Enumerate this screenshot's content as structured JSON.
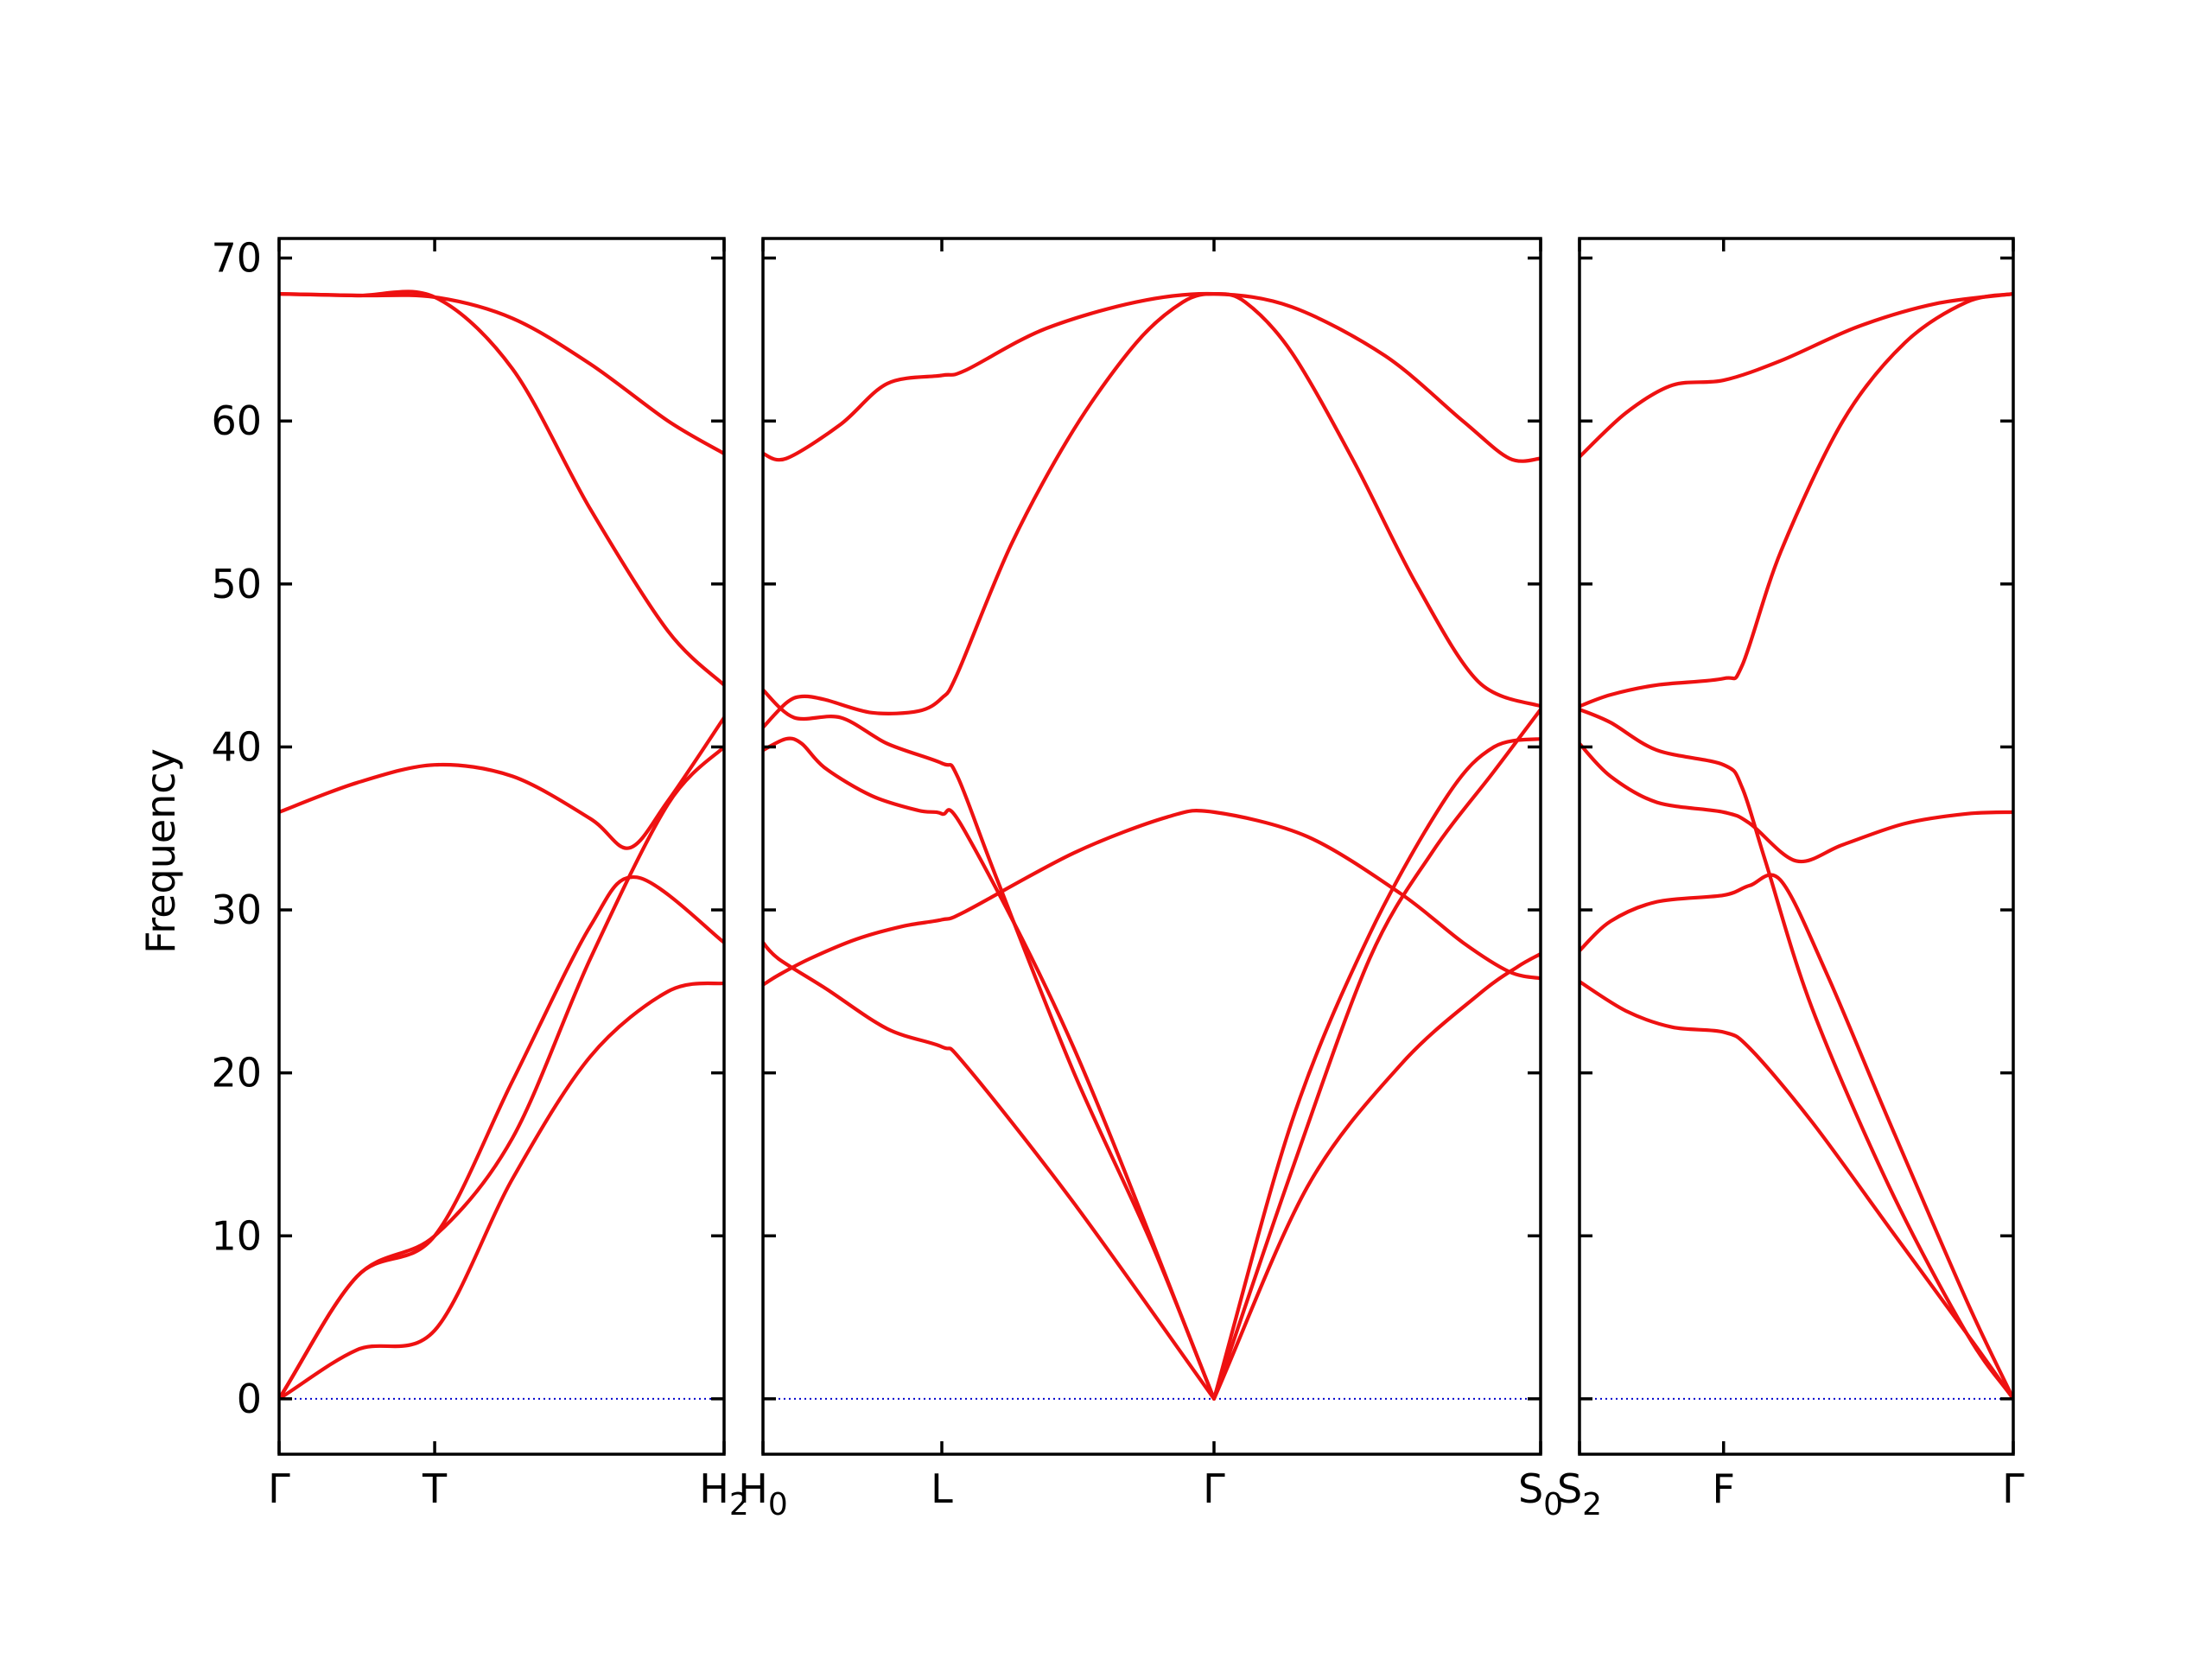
{
  "chart_data": {
    "type": "line",
    "ylabel": "Frequency",
    "xlabel": "",
    "ylim": [
      -3.4,
      71.2
    ],
    "yticks": [
      0,
      10,
      20,
      30,
      40,
      50,
      60,
      70
    ],
    "grid": false,
    "legend": "none",
    "colors": {
      "bands": "#ee1111",
      "zero_line": "#0000cc",
      "axes": "#000000"
    },
    "panels": [
      {
        "xlim": [
          0,
          2.86
        ],
        "xticks": [
          {
            "x": 0,
            "label": "Γ"
          },
          {
            "x": 1.0,
            "label": "T"
          },
          {
            "x": 2.86,
            "label": "H",
            "sub": "2"
          }
        ],
        "bands": [
          {
            "x": [
              0,
              0.5,
              1.0,
              1.5,
              2.0,
              2.5,
              2.86
            ],
            "y": [
              0,
              3.0,
              4.2,
              13.5,
              21.0,
              25.0,
              25.5
            ]
          },
          {
            "x": [
              0,
              0.5,
              1.0,
              1.5,
              2.0,
              2.3,
              2.86
            ],
            "y": [
              0,
              7.5,
              10.0,
              19.5,
              29.0,
              32.0,
              28.0
            ]
          },
          {
            "x": [
              0,
              0.5,
              1.0,
              1.5,
              2.0,
              2.5,
              2.86
            ],
            "y": [
              0,
              7.5,
              10.0,
              16.0,
              27.0,
              36.5,
              40.0
            ]
          },
          {
            "x": [
              0,
              0.5,
              1.0,
              1.5,
              2.0,
              2.25,
              2.5,
              2.86
            ],
            "y": [
              36.0,
              37.8,
              38.9,
              38.2,
              35.6,
              33.8,
              36.7,
              41.8
            ]
          },
          {
            "x": [
              0,
              0.5,
              1.0,
              1.5,
              2.0,
              2.5,
              2.86
            ],
            "y": [
              67.8,
              67.7,
              67.6,
              63.2,
              54.6,
              47.1,
              43.8
            ]
          },
          {
            "x": [
              0,
              0.5,
              1.0,
              1.5,
              2.0,
              2.5,
              2.86
            ],
            "y": [
              67.8,
              67.7,
              67.6,
              66.3,
              63.5,
              60.0,
              58.0
            ]
          }
        ]
      },
      {
        "xlim": [
          0,
          5.0
        ],
        "xticks": [
          {
            "x": 0,
            "label": "H",
            "sub": "0"
          },
          {
            "x": 1.15,
            "label": "L"
          },
          {
            "x": 2.9,
            "label": "Γ"
          },
          {
            "x": 5.0,
            "label": "S",
            "sub": "0"
          }
        ],
        "bands": [
          {
            "x": [
              0,
              0.1,
              0.3,
              0.6,
              0.9,
              1.15,
              1.3,
              2.0,
              2.6,
              2.9,
              3.5,
              4.1,
              4.5,
              4.8,
              5.0
            ],
            "y": [
              25.4,
              26.0,
              27.0,
              28.2,
              29.0,
              29.4,
              29.9,
              33.5,
              35.7,
              36.0,
              34.5,
              31.0,
              28.0,
              26.2,
              25.8
            ]
          },
          {
            "x": [
              0,
              0.1,
              0.4,
              0.8,
              1.15,
              1.3,
              2.0,
              2.9,
              3.5,
              4.1,
              4.6,
              4.85,
              5.0
            ],
            "y": [
              28.0,
              27.0,
              25.2,
              22.7,
              21.6,
              20.5,
              12.0,
              0,
              13.0,
              20.5,
              24.8,
              26.5,
              27.3
            ]
          },
          {
            "x": [
              0,
              0.15,
              0.25,
              0.4,
              0.7,
              1.0,
              1.15,
              1.3,
              2.0,
              2.9,
              3.4,
              3.9,
              4.4,
              4.7,
              5.0
            ],
            "y": [
              39.8,
              40.5,
              40.2,
              38.7,
              37.0,
              36.1,
              35.9,
              34.8,
              21.5,
              0,
              17.0,
              28.5,
              37.0,
              40.0,
              40.5
            ]
          },
          {
            "x": [
              0,
              0.2,
              0.5,
              0.8,
              1.15,
              1.25,
              1.5,
              2.0,
              2.5,
              2.9,
              3.4,
              3.9,
              4.3,
              4.7,
              5.0
            ],
            "y": [
              43.5,
              41.8,
              41.8,
              40.2,
              39.0,
              38.2,
              32.0,
              20.0,
              9.5,
              0,
              14.0,
              27.0,
              33.5,
              38.5,
              42.3
            ]
          },
          {
            "x": [
              0,
              0.15,
              0.25,
              0.4,
              0.7,
              1.0,
              1.15,
              1.25,
              1.6,
              2.0,
              2.4,
              2.7,
              2.9,
              3.1,
              3.4,
              3.8,
              4.2,
              4.6,
              5.0
            ],
            "y": [
              41.2,
              42.7,
              43.1,
              42.9,
              42.1,
              42.2,
              43.0,
              44.5,
              52.5,
              59.5,
              64.8,
              67.3,
              67.8,
              67.3,
              64.2,
              57.5,
              50.0,
              44.0,
              42.5
            ]
          },
          {
            "x": [
              0,
              0.15,
              0.5,
              0.8,
              1.15,
              1.3,
              1.8,
              2.4,
              2.9,
              3.4,
              4.0,
              4.5,
              4.8,
              5.0
            ],
            "y": [
              58.0,
              57.7,
              59.8,
              62.3,
              62.8,
              63.1,
              65.6,
              67.3,
              67.8,
              67.0,
              64.0,
              60.0,
              57.7,
              57.7
            ]
          }
        ]
      },
      {
        "xlim": [
          0,
          2.8
        ],
        "xticks": [
          {
            "x": 0,
            "label": "S",
            "sub": "2"
          },
          {
            "x": 0.93,
            "label": "F"
          },
          {
            "x": 2.8,
            "label": "Γ"
          }
        ],
        "bands": [
          {
            "x": [
              0,
              0.3,
              0.6,
              0.93,
              1.1,
              1.5,
              2.0,
              2.5,
              2.8
            ],
            "y": [
              25.6,
              23.8,
              22.8,
              22.5,
              21.5,
              17.0,
              10.5,
              4.0,
              0
            ]
          },
          {
            "x": [
              0,
              0.2,
              0.5,
              0.93,
              1.1,
              1.3,
              1.6,
              2.0,
              2.5,
              2.8
            ],
            "y": [
              27.5,
              29.3,
              30.5,
              30.9,
              31.5,
              31.8,
              26.0,
              17.0,
              6.0,
              0
            ]
          },
          {
            "x": [
              0,
              0.2,
              0.5,
              0.93,
              1.1,
              1.4,
              1.7,
              2.1,
              2.5,
              2.8
            ],
            "y": [
              40.2,
              38.2,
              36.6,
              36.0,
              35.3,
              33.0,
              34.0,
              35.3,
              35.9,
              36.0
            ]
          },
          {
            "x": [
              0,
              0.2,
              0.5,
              0.93,
              1.05,
              1.2,
              1.5,
              2.0,
              2.5,
              2.8
            ],
            "y": [
              42.3,
              41.5,
              39.8,
              38.9,
              37.5,
              33.0,
              24.0,
              13.0,
              4.0,
              0
            ]
          },
          {
            "x": [
              0,
              0.2,
              0.5,
              0.93,
              1.05,
              1.3,
              1.7,
              2.1,
              2.5,
              2.8
            ],
            "y": [
              42.5,
              43.2,
              43.8,
              44.2,
              45.0,
              52.0,
              60.0,
              64.8,
              67.3,
              67.8
            ]
          },
          {
            "x": [
              0,
              0.3,
              0.6,
              0.93,
              1.3,
              1.8,
              2.3,
              2.8
            ],
            "y": [
              57.8,
              60.5,
              62.2,
              62.5,
              63.7,
              65.8,
              67.2,
              67.8
            ]
          }
        ]
      }
    ]
  }
}
